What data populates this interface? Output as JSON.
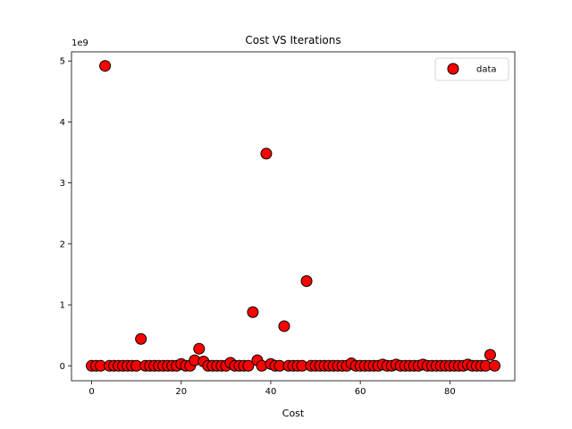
{
  "chart_data": {
    "type": "scatter",
    "title": "Cost VS Iterations",
    "xlabel": "Cost",
    "ylabel": "",
    "y_offset_label": "1e9",
    "xlim": [
      -4.5,
      94.5
    ],
    "ylim": [
      -0.245,
      5.15
    ],
    "x_ticks": [
      0,
      20,
      40,
      60,
      80
    ],
    "y_ticks": [
      0,
      1,
      2,
      3,
      4,
      5
    ],
    "legend": {
      "position": "top-right",
      "entries": [
        "data"
      ]
    },
    "colors": {
      "marker_fill": "#ff0000",
      "marker_edge": "#000000"
    },
    "series": [
      {
        "name": "data",
        "x": [
          0,
          1,
          2,
          3,
          4,
          5,
          6,
          7,
          8,
          9,
          10,
          11,
          12,
          13,
          14,
          15,
          16,
          17,
          18,
          19,
          20,
          21,
          22,
          23,
          24,
          25,
          26,
          27,
          28,
          29,
          30,
          31,
          32,
          33,
          34,
          35,
          36,
          37,
          38,
          39,
          40,
          41,
          42,
          43,
          44,
          45,
          46,
          47,
          48,
          49,
          50,
          51,
          52,
          53,
          54,
          55,
          56,
          57,
          58,
          59,
          60,
          61,
          62,
          63,
          64,
          65,
          66,
          67,
          68,
          69,
          70,
          71,
          72,
          73,
          74,
          75,
          76,
          77,
          78,
          79,
          80,
          81,
          82,
          83,
          84,
          85,
          86,
          87,
          88,
          89,
          90
        ],
        "y": [
          0,
          0,
          0,
          4.92,
          0,
          0,
          0,
          0,
          0,
          0,
          0,
          0.44,
          0,
          0,
          0,
          0,
          0,
          0,
          0,
          0,
          0.03,
          0,
          0,
          0.09,
          0.28,
          0.07,
          0,
          0,
          0,
          0,
          0,
          0.05,
          0,
          0,
          0,
          0,
          0.88,
          0.09,
          0,
          3.48,
          0.03,
          0,
          0,
          0.65,
          0,
          0,
          0,
          0,
          1.39,
          0,
          0,
          0,
          0,
          0,
          0,
          0,
          0,
          0,
          0.04,
          0,
          0,
          0,
          0,
          0,
          0,
          0.02,
          0,
          0,
          0.02,
          0,
          0,
          0,
          0,
          0,
          0.02,
          0,
          0,
          0,
          0,
          0,
          0,
          0,
          0,
          0,
          0.02,
          0,
          0,
          0,
          0,
          0.18,
          0
        ]
      }
    ]
  }
}
